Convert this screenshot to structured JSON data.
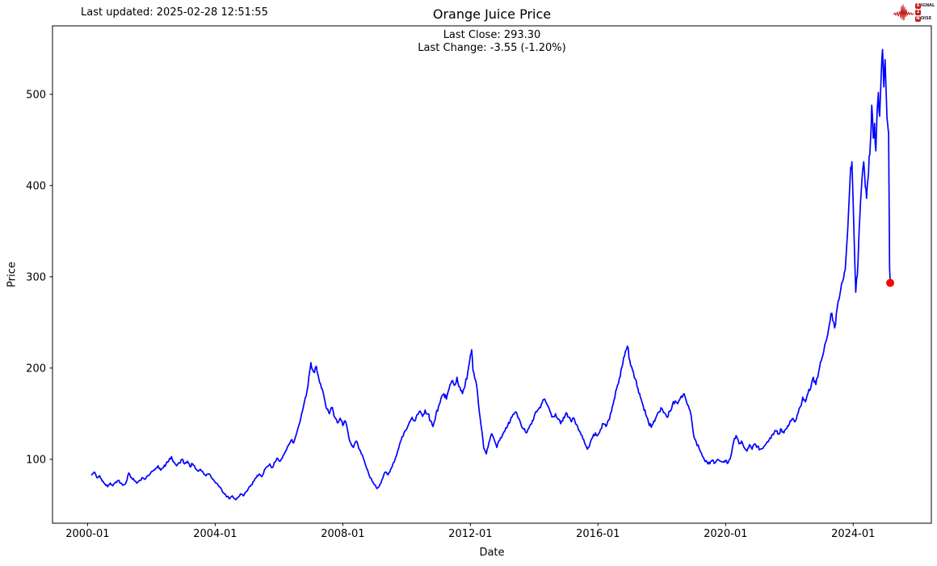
{
  "header": {
    "last_updated": "Last updated: 2025-02-28 12:51:55"
  },
  "logo": {
    "line1_badge": "S",
    "line1_rest": "IGNAL",
    "line2_badge": "2",
    "line3_badge": "N",
    "line3_rest": "OISE",
    "color": "#c41f1f"
  },
  "chart_data": {
    "type": "line",
    "title": "Orange Juice Price",
    "subtitle_lines": [
      "Last Close: 293.30",
      "Last Change: -3.55 (-1.20%)"
    ],
    "xlabel": "Date",
    "ylabel": "Price",
    "x_tick_years": [
      2000,
      2004,
      2008,
      2012,
      2016,
      2020,
      2024
    ],
    "x_tick_labels": [
      "2000-01",
      "2004-01",
      "2008-01",
      "2012-01",
      "2016-01",
      "2020-01",
      "2024-01"
    ],
    "y_ticks": [
      100,
      200,
      300,
      400,
      500
    ],
    "xlim": [
      1998.9,
      2026.45
    ],
    "ylim": [
      30,
      575
    ],
    "grid": false,
    "legend": "none",
    "line_color": "#0000ff",
    "marker_color": "#ff0000",
    "last_close": 293.3,
    "last_change": -3.55,
    "last_change_pct": "-1.20%",
    "last_point": {
      "t": 2025.16,
      "value": 293.3
    },
    "series": [
      [
        2000.13,
        83
      ],
      [
        2000.21,
        86
      ],
      [
        2000.29,
        80
      ],
      [
        2000.38,
        82
      ],
      [
        2000.46,
        76
      ],
      [
        2000.54,
        73
      ],
      [
        2000.63,
        70
      ],
      [
        2000.71,
        74
      ],
      [
        2000.79,
        71
      ],
      [
        2000.88,
        75
      ],
      [
        2000.96,
        77
      ],
      [
        2001.04,
        74
      ],
      [
        2001.13,
        72
      ],
      [
        2001.21,
        75
      ],
      [
        2001.29,
        85
      ],
      [
        2001.38,
        80
      ],
      [
        2001.46,
        77
      ],
      [
        2001.54,
        74
      ],
      [
        2001.63,
        77
      ],
      [
        2001.71,
        80
      ],
      [
        2001.79,
        78
      ],
      [
        2001.88,
        82
      ],
      [
        2001.96,
        84
      ],
      [
        2002.04,
        87
      ],
      [
        2002.13,
        90
      ],
      [
        2002.21,
        93
      ],
      [
        2002.29,
        88
      ],
      [
        2002.38,
        91
      ],
      [
        2002.46,
        95
      ],
      [
        2002.54,
        98
      ],
      [
        2002.63,
        103
      ],
      [
        2002.71,
        97
      ],
      [
        2002.79,
        93
      ],
      [
        2002.88,
        96
      ],
      [
        2002.96,
        100
      ],
      [
        2003.04,
        95
      ],
      [
        2003.13,
        98
      ],
      [
        2003.21,
        92
      ],
      [
        2003.29,
        95
      ],
      [
        2003.38,
        90
      ],
      [
        2003.46,
        87
      ],
      [
        2003.54,
        89
      ],
      [
        2003.63,
        85
      ],
      [
        2003.71,
        82
      ],
      [
        2003.79,
        84
      ],
      [
        2003.88,
        80
      ],
      [
        2003.96,
        77
      ],
      [
        2004.04,
        74
      ],
      [
        2004.13,
        70
      ],
      [
        2004.21,
        66
      ],
      [
        2004.29,
        62
      ],
      [
        2004.38,
        59
      ],
      [
        2004.46,
        57
      ],
      [
        2004.54,
        60
      ],
      [
        2004.63,
        56
      ],
      [
        2004.71,
        58
      ],
      [
        2004.79,
        62
      ],
      [
        2004.88,
        60
      ],
      [
        2004.96,
        64
      ],
      [
        2005.04,
        68
      ],
      [
        2005.13,
        72
      ],
      [
        2005.21,
        76
      ],
      [
        2005.29,
        80
      ],
      [
        2005.38,
        84
      ],
      [
        2005.46,
        81
      ],
      [
        2005.54,
        88
      ],
      [
        2005.63,
        92
      ],
      [
        2005.71,
        95
      ],
      [
        2005.79,
        91
      ],
      [
        2005.88,
        97
      ],
      [
        2005.96,
        101
      ],
      [
        2006.04,
        98
      ],
      [
        2006.13,
        104
      ],
      [
        2006.21,
        109
      ],
      [
        2006.29,
        115
      ],
      [
        2006.38,
        121
      ],
      [
        2006.46,
        118
      ],
      [
        2006.54,
        127
      ],
      [
        2006.63,
        138
      ],
      [
        2006.71,
        150
      ],
      [
        2006.79,
        162
      ],
      [
        2006.88,
        175
      ],
      [
        2006.96,
        196
      ],
      [
        2007.0,
        206
      ],
      [
        2007.08,
        196
      ],
      [
        2007.17,
        202
      ],
      [
        2007.25,
        188
      ],
      [
        2007.33,
        178
      ],
      [
        2007.42,
        167
      ],
      [
        2007.5,
        155
      ],
      [
        2007.58,
        150
      ],
      [
        2007.67,
        157
      ],
      [
        2007.75,
        146
      ],
      [
        2007.83,
        140
      ],
      [
        2007.92,
        145
      ],
      [
        2008.0,
        137
      ],
      [
        2008.08,
        142
      ],
      [
        2008.17,
        128
      ],
      [
        2008.25,
        118
      ],
      [
        2008.33,
        113
      ],
      [
        2008.42,
        120
      ],
      [
        2008.5,
        112
      ],
      [
        2008.58,
        106
      ],
      [
        2008.67,
        99
      ],
      [
        2008.75,
        90
      ],
      [
        2008.83,
        82
      ],
      [
        2008.92,
        76
      ],
      [
        2009.0,
        72
      ],
      [
        2009.08,
        68
      ],
      [
        2009.17,
        73
      ],
      [
        2009.25,
        79
      ],
      [
        2009.33,
        86
      ],
      [
        2009.42,
        83
      ],
      [
        2009.5,
        89
      ],
      [
        2009.58,
        96
      ],
      [
        2009.67,
        103
      ],
      [
        2009.75,
        112
      ],
      [
        2009.83,
        121
      ],
      [
        2009.92,
        129
      ],
      [
        2010.0,
        133
      ],
      [
        2010.08,
        140
      ],
      [
        2010.17,
        146
      ],
      [
        2010.25,
        142
      ],
      [
        2010.33,
        149
      ],
      [
        2010.42,
        153
      ],
      [
        2010.5,
        147
      ],
      [
        2010.58,
        154
      ],
      [
        2010.67,
        150
      ],
      [
        2010.75,
        142
      ],
      [
        2010.83,
        136
      ],
      [
        2010.92,
        149
      ],
      [
        2011.0,
        158
      ],
      [
        2011.08,
        167
      ],
      [
        2011.17,
        172
      ],
      [
        2011.25,
        166
      ],
      [
        2011.33,
        177
      ],
      [
        2011.42,
        186
      ],
      [
        2011.5,
        181
      ],
      [
        2011.58,
        190
      ],
      [
        2011.67,
        179
      ],
      [
        2011.75,
        172
      ],
      [
        2011.83,
        180
      ],
      [
        2011.92,
        196
      ],
      [
        2012.0,
        214
      ],
      [
        2012.04,
        220
      ],
      [
        2012.08,
        198
      ],
      [
        2012.17,
        186
      ],
      [
        2012.25,
        162
      ],
      [
        2012.33,
        138
      ],
      [
        2012.42,
        112
      ],
      [
        2012.5,
        106
      ],
      [
        2012.58,
        118
      ],
      [
        2012.67,
        128
      ],
      [
        2012.75,
        121
      ],
      [
        2012.83,
        113
      ],
      [
        2012.92,
        121
      ],
      [
        2013.0,
        126
      ],
      [
        2013.08,
        131
      ],
      [
        2013.17,
        137
      ],
      [
        2013.25,
        142
      ],
      [
        2013.33,
        149
      ],
      [
        2013.42,
        152
      ],
      [
        2013.5,
        145
      ],
      [
        2013.58,
        139
      ],
      [
        2013.67,
        133
      ],
      [
        2013.75,
        129
      ],
      [
        2013.83,
        134
      ],
      [
        2013.92,
        139
      ],
      [
        2014.0,
        147
      ],
      [
        2014.08,
        152
      ],
      [
        2014.17,
        157
      ],
      [
        2014.25,
        162
      ],
      [
        2014.33,
        166
      ],
      [
        2014.42,
        159
      ],
      [
        2014.5,
        152
      ],
      [
        2014.58,
        147
      ],
      [
        2014.67,
        150
      ],
      [
        2014.75,
        144
      ],
      [
        2014.83,
        139
      ],
      [
        2014.92,
        146
      ],
      [
        2015.0,
        151
      ],
      [
        2015.08,
        146
      ],
      [
        2015.17,
        141
      ],
      [
        2015.25,
        145
      ],
      [
        2015.33,
        138
      ],
      [
        2015.42,
        131
      ],
      [
        2015.5,
        126
      ],
      [
        2015.58,
        118
      ],
      [
        2015.67,
        111
      ],
      [
        2015.75,
        117
      ],
      [
        2015.83,
        124
      ],
      [
        2015.92,
        129
      ],
      [
        2016.0,
        127
      ],
      [
        2016.08,
        133
      ],
      [
        2016.17,
        139
      ],
      [
        2016.25,
        136
      ],
      [
        2016.33,
        143
      ],
      [
        2016.42,
        152
      ],
      [
        2016.5,
        165
      ],
      [
        2016.58,
        177
      ],
      [
        2016.67,
        189
      ],
      [
        2016.75,
        201
      ],
      [
        2016.83,
        213
      ],
      [
        2016.92,
        224
      ],
      [
        2017.0,
        208
      ],
      [
        2017.08,
        198
      ],
      [
        2017.17,
        188
      ],
      [
        2017.25,
        178
      ],
      [
        2017.33,
        168
      ],
      [
        2017.42,
        158
      ],
      [
        2017.5,
        149
      ],
      [
        2017.58,
        141
      ],
      [
        2017.67,
        135
      ],
      [
        2017.75,
        142
      ],
      [
        2017.83,
        147
      ],
      [
        2017.92,
        152
      ],
      [
        2018.0,
        156
      ],
      [
        2018.08,
        151
      ],
      [
        2018.17,
        146
      ],
      [
        2018.25,
        153
      ],
      [
        2018.33,
        159
      ],
      [
        2018.42,
        164
      ],
      [
        2018.5,
        161
      ],
      [
        2018.58,
        167
      ],
      [
        2018.67,
        171
      ],
      [
        2018.75,
        166
      ],
      [
        2018.83,
        159
      ],
      [
        2018.92,
        148
      ],
      [
        2019.0,
        126
      ],
      [
        2019.08,
        119
      ],
      [
        2019.17,
        112
      ],
      [
        2019.25,
        106
      ],
      [
        2019.33,
        100
      ],
      [
        2019.42,
        97
      ],
      [
        2019.5,
        95
      ],
      [
        2019.58,
        99
      ],
      [
        2019.67,
        96
      ],
      [
        2019.75,
        100
      ],
      [
        2019.83,
        98
      ],
      [
        2019.92,
        97
      ],
      [
        2020.0,
        99
      ],
      [
        2020.08,
        96
      ],
      [
        2020.17,
        104
      ],
      [
        2020.25,
        119
      ],
      [
        2020.33,
        126
      ],
      [
        2020.42,
        117
      ],
      [
        2020.5,
        120
      ],
      [
        2020.58,
        113
      ],
      [
        2020.67,
        109
      ],
      [
        2020.75,
        116
      ],
      [
        2020.83,
        111
      ],
      [
        2020.92,
        117
      ],
      [
        2021.0,
        114
      ],
      [
        2021.08,
        111
      ],
      [
        2021.17,
        112
      ],
      [
        2021.25,
        116
      ],
      [
        2021.33,
        119
      ],
      [
        2021.42,
        123
      ],
      [
        2021.5,
        127
      ],
      [
        2021.58,
        131
      ],
      [
        2021.67,
        128
      ],
      [
        2021.75,
        133
      ],
      [
        2021.83,
        129
      ],
      [
        2021.92,
        134
      ],
      [
        2022.0,
        139
      ],
      [
        2022.08,
        144
      ],
      [
        2022.17,
        141
      ],
      [
        2022.25,
        149
      ],
      [
        2022.33,
        157
      ],
      [
        2022.42,
        168
      ],
      [
        2022.5,
        163
      ],
      [
        2022.58,
        172
      ],
      [
        2022.67,
        178
      ],
      [
        2022.75,
        190
      ],
      [
        2022.83,
        182
      ],
      [
        2022.92,
        196
      ],
      [
        2023.0,
        208
      ],
      [
        2023.08,
        219
      ],
      [
        2023.17,
        232
      ],
      [
        2023.25,
        247
      ],
      [
        2023.33,
        260
      ],
      [
        2023.42,
        244
      ],
      [
        2023.5,
        266
      ],
      [
        2023.58,
        280
      ],
      [
        2023.67,
        295
      ],
      [
        2023.75,
        308
      ],
      [
        2023.83,
        352
      ],
      [
        2023.92,
        420
      ],
      [
        2023.96,
        426
      ],
      [
        2024.0,
        382
      ],
      [
        2024.04,
        330
      ],
      [
        2024.08,
        283
      ],
      [
        2024.13,
        302
      ],
      [
        2024.17,
        336
      ],
      [
        2024.21,
        366
      ],
      [
        2024.25,
        392
      ],
      [
        2024.29,
        414
      ],
      [
        2024.33,
        426
      ],
      [
        2024.38,
        398
      ],
      [
        2024.42,
        386
      ],
      [
        2024.46,
        406
      ],
      [
        2024.5,
        432
      ],
      [
        2024.54,
        448
      ],
      [
        2024.58,
        488
      ],
      [
        2024.63,
        452
      ],
      [
        2024.67,
        468
      ],
      [
        2024.71,
        438
      ],
      [
        2024.75,
        482
      ],
      [
        2024.79,
        502
      ],
      [
        2024.83,
        476
      ],
      [
        2024.88,
        522
      ],
      [
        2024.92,
        549
      ],
      [
        2024.96,
        508
      ],
      [
        2025.0,
        538
      ],
      [
        2025.04,
        496
      ],
      [
        2025.08,
        468
      ],
      [
        2025.11,
        458
      ],
      [
        2025.14,
        310
      ],
      [
        2025.16,
        293.3
      ]
    ]
  }
}
